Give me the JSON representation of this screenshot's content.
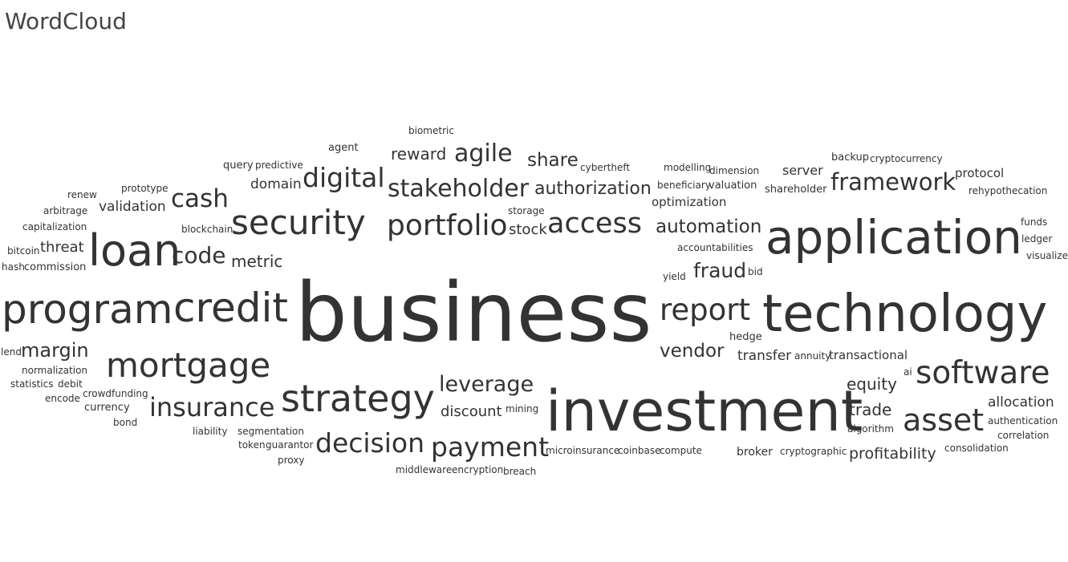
{
  "title": "WordCloud",
  "colors": {
    "text": "#333333",
    "title": "#444444"
  },
  "chart_data": {
    "type": "wordcloud",
    "words": [
      {
        "text": "business",
        "size": 100
      },
      {
        "text": "investment",
        "size": 68
      },
      {
        "text": "technology",
        "size": 63
      },
      {
        "text": "application",
        "size": 56
      },
      {
        "text": "loan",
        "size": 52
      },
      {
        "text": "program",
        "size": 50
      },
      {
        "text": "credit",
        "size": 48
      },
      {
        "text": "strategy",
        "size": 45
      },
      {
        "text": "mortgage",
        "size": 41
      },
      {
        "text": "security",
        "size": 41
      },
      {
        "text": "software",
        "size": 39
      },
      {
        "text": "asset",
        "size": 37
      },
      {
        "text": "report",
        "size": 36
      },
      {
        "text": "portfolio",
        "size": 35
      },
      {
        "text": "access",
        "size": 34
      },
      {
        "text": "decision",
        "size": 33
      },
      {
        "text": "insurance",
        "size": 32
      },
      {
        "text": "digital",
        "size": 32
      },
      {
        "text": "payment",
        "size": 32
      },
      {
        "text": "cash",
        "size": 30
      },
      {
        "text": "stakeholder",
        "size": 30
      },
      {
        "text": "agile",
        "size": 30
      },
      {
        "text": "framework",
        "size": 28
      },
      {
        "text": "code",
        "size": 27
      },
      {
        "text": "leverage",
        "size": 27
      },
      {
        "text": "fraud",
        "size": 26
      },
      {
        "text": "vendor",
        "size": 24
      },
      {
        "text": "margin",
        "size": 24
      },
      {
        "text": "automation",
        "size": 23
      },
      {
        "text": "authorization",
        "size": 22
      },
      {
        "text": "share",
        "size": 22
      },
      {
        "text": "reward",
        "size": 21
      },
      {
        "text": "metric",
        "size": 21
      },
      {
        "text": "equity",
        "size": 21
      },
      {
        "text": "trade",
        "size": 21
      },
      {
        "text": "profitability",
        "size": 20
      },
      {
        "text": "threat",
        "size": 19
      },
      {
        "text": "stock",
        "size": 19
      },
      {
        "text": "discount",
        "size": 19
      },
      {
        "text": "domain",
        "size": 18
      },
      {
        "text": "validation",
        "size": 18
      },
      {
        "text": "transfer",
        "size": 18
      },
      {
        "text": "allocation",
        "size": 18
      },
      {
        "text": "server",
        "size": 17
      },
      {
        "text": "optimization",
        "size": 16
      },
      {
        "text": "transactional",
        "size": 16
      },
      {
        "text": "protocol",
        "size": 16
      },
      {
        "text": "broker",
        "size": 15
      },
      {
        "text": "currency",
        "size": 14
      },
      {
        "text": "shareholder",
        "size": 14
      },
      {
        "text": "valuation",
        "size": 14
      },
      {
        "text": "commission",
        "size": 14
      },
      {
        "text": "agent",
        "size": 14
      },
      {
        "text": "query",
        "size": 14
      },
      {
        "text": "backup",
        "size": 14
      },
      {
        "text": "hedge",
        "size": 13
      },
      {
        "text": "crowdfunding",
        "size": 13
      },
      {
        "text": "cryptographic",
        "size": 13
      },
      {
        "text": "accountabilities",
        "size": 13
      },
      {
        "text": "microinsurance",
        "size": 13
      },
      {
        "text": "coinbase",
        "size": 13
      },
      {
        "text": "compute",
        "size": 13
      },
      {
        "text": "consolidation",
        "size": 13
      },
      {
        "text": "segmentation",
        "size": 13
      },
      {
        "text": "debit",
        "size": 13
      },
      {
        "text": "statistics",
        "size": 13
      },
      {
        "text": "encryption",
        "size": 13
      },
      {
        "text": "middleware",
        "size": 13
      },
      {
        "text": "liability",
        "size": 13
      },
      {
        "text": "funds",
        "size": 13
      },
      {
        "text": "ledger",
        "size": 13
      },
      {
        "text": "visualize",
        "size": 13
      },
      {
        "text": "yield",
        "size": 13
      },
      {
        "text": "blockchain",
        "size": 13
      },
      {
        "text": "capitalization",
        "size": 13
      },
      {
        "text": "arbitrage",
        "size": 13
      },
      {
        "text": "renew",
        "size": 13
      },
      {
        "text": "bitcoin",
        "size": 13
      },
      {
        "text": "biometric",
        "size": 13
      },
      {
        "text": "prototype",
        "size": 13
      },
      {
        "text": "predictive",
        "size": 13
      },
      {
        "text": "cybertheft",
        "size": 13
      },
      {
        "text": "modelling",
        "size": 13
      },
      {
        "text": "dimension",
        "size": 13
      },
      {
        "text": "beneficiary",
        "size": 13
      },
      {
        "text": "cryptocurrency",
        "size": 13
      },
      {
        "text": "rehypothecation",
        "size": 13
      },
      {
        "text": "storage",
        "size": 13
      },
      {
        "text": "normalization",
        "size": 13
      },
      {
        "text": "encode",
        "size": 13
      },
      {
        "text": "bond",
        "size": 13
      },
      {
        "text": "token",
        "size": 13
      },
      {
        "text": "guarantor",
        "size": 13
      },
      {
        "text": "proxy",
        "size": 13
      },
      {
        "text": "mining",
        "size": 13
      },
      {
        "text": "breach",
        "size": 13
      },
      {
        "text": "algorithm",
        "size": 13
      },
      {
        "text": "authentication",
        "size": 13
      },
      {
        "text": "correlation",
        "size": 13
      },
      {
        "text": "annuity",
        "size": 13
      },
      {
        "text": "bid",
        "size": 13
      },
      {
        "text": "ai",
        "size": 13
      },
      {
        "text": "hash",
        "size": 13
      },
      {
        "text": "lend",
        "size": 13
      }
    ]
  }
}
